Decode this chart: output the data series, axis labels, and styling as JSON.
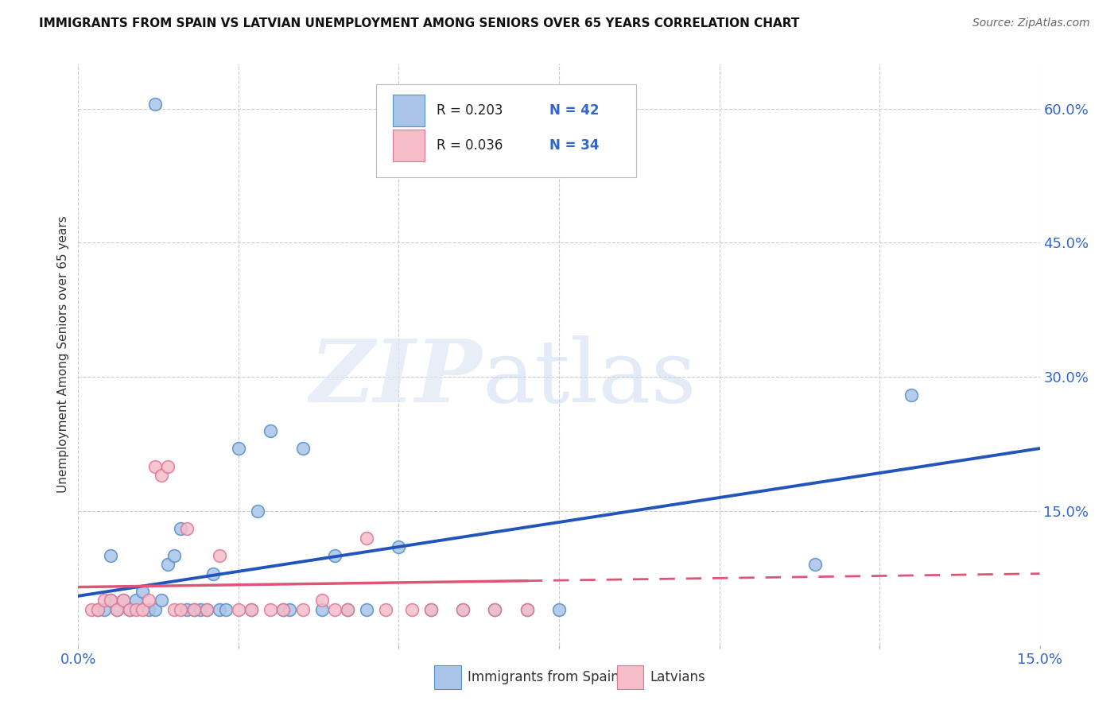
{
  "title": "IMMIGRANTS FROM SPAIN VS LATVIAN UNEMPLOYMENT AMONG SENIORS OVER 65 YEARS CORRELATION CHART",
  "source": "Source: ZipAtlas.com",
  "ylabel": "Unemployment Among Seniors over 65 years",
  "xlim": [
    0.0,
    0.15
  ],
  "ylim": [
    0.0,
    0.65
  ],
  "xticks": [
    0.0,
    0.025,
    0.05,
    0.075,
    0.1,
    0.125,
    0.15
  ],
  "xticklabels": [
    "0.0%",
    "",
    "",
    "",
    "",
    "",
    "15.0%"
  ],
  "yticks_right": [
    0.0,
    0.15,
    0.3,
    0.45,
    0.6
  ],
  "ytick_right_labels": [
    "",
    "15.0%",
    "30.0%",
    "45.0%",
    "60.0%"
  ],
  "grid_color": "#cccccc",
  "series1_color": "#aac4e8",
  "series1_edge": "#5590c8",
  "series1_line_color": "#2255bb",
  "series2_color": "#f5bdc8",
  "series2_edge": "#dd7799",
  "series2_line_color": "#dd5577",
  "R1": 0.203,
  "N1": 42,
  "R2": 0.036,
  "N2": 34,
  "legend_label1": "Immigrants from Spain",
  "legend_label2": "Latvians",
  "blue_scatter_x": [
    0.012,
    0.003,
    0.004,
    0.005,
    0.005,
    0.006,
    0.007,
    0.008,
    0.009,
    0.01,
    0.011,
    0.012,
    0.013,
    0.014,
    0.015,
    0.016,
    0.017,
    0.018,
    0.019,
    0.02,
    0.021,
    0.022,
    0.023,
    0.025,
    0.027,
    0.028,
    0.03,
    0.032,
    0.033,
    0.035,
    0.038,
    0.04,
    0.042,
    0.045,
    0.05,
    0.055,
    0.06,
    0.065,
    0.07,
    0.075,
    0.115,
    0.13
  ],
  "blue_scatter_y": [
    0.605,
    0.04,
    0.04,
    0.05,
    0.1,
    0.04,
    0.05,
    0.04,
    0.05,
    0.06,
    0.04,
    0.04,
    0.05,
    0.09,
    0.1,
    0.13,
    0.04,
    0.04,
    0.04,
    0.04,
    0.08,
    0.04,
    0.04,
    0.22,
    0.04,
    0.15,
    0.24,
    0.04,
    0.04,
    0.22,
    0.04,
    0.1,
    0.04,
    0.04,
    0.11,
    0.04,
    0.04,
    0.04,
    0.04,
    0.04,
    0.09,
    0.28
  ],
  "pink_scatter_x": [
    0.002,
    0.003,
    0.004,
    0.005,
    0.006,
    0.007,
    0.008,
    0.009,
    0.01,
    0.011,
    0.012,
    0.013,
    0.014,
    0.015,
    0.016,
    0.017,
    0.018,
    0.02,
    0.022,
    0.025,
    0.027,
    0.03,
    0.032,
    0.035,
    0.038,
    0.04,
    0.042,
    0.045,
    0.048,
    0.052,
    0.055,
    0.06,
    0.065,
    0.07
  ],
  "pink_scatter_y": [
    0.04,
    0.04,
    0.05,
    0.05,
    0.04,
    0.05,
    0.04,
    0.04,
    0.04,
    0.05,
    0.2,
    0.19,
    0.2,
    0.04,
    0.04,
    0.13,
    0.04,
    0.04,
    0.1,
    0.04,
    0.04,
    0.04,
    0.04,
    0.04,
    0.05,
    0.04,
    0.04,
    0.12,
    0.04,
    0.04,
    0.04,
    0.04,
    0.04,
    0.04
  ]
}
